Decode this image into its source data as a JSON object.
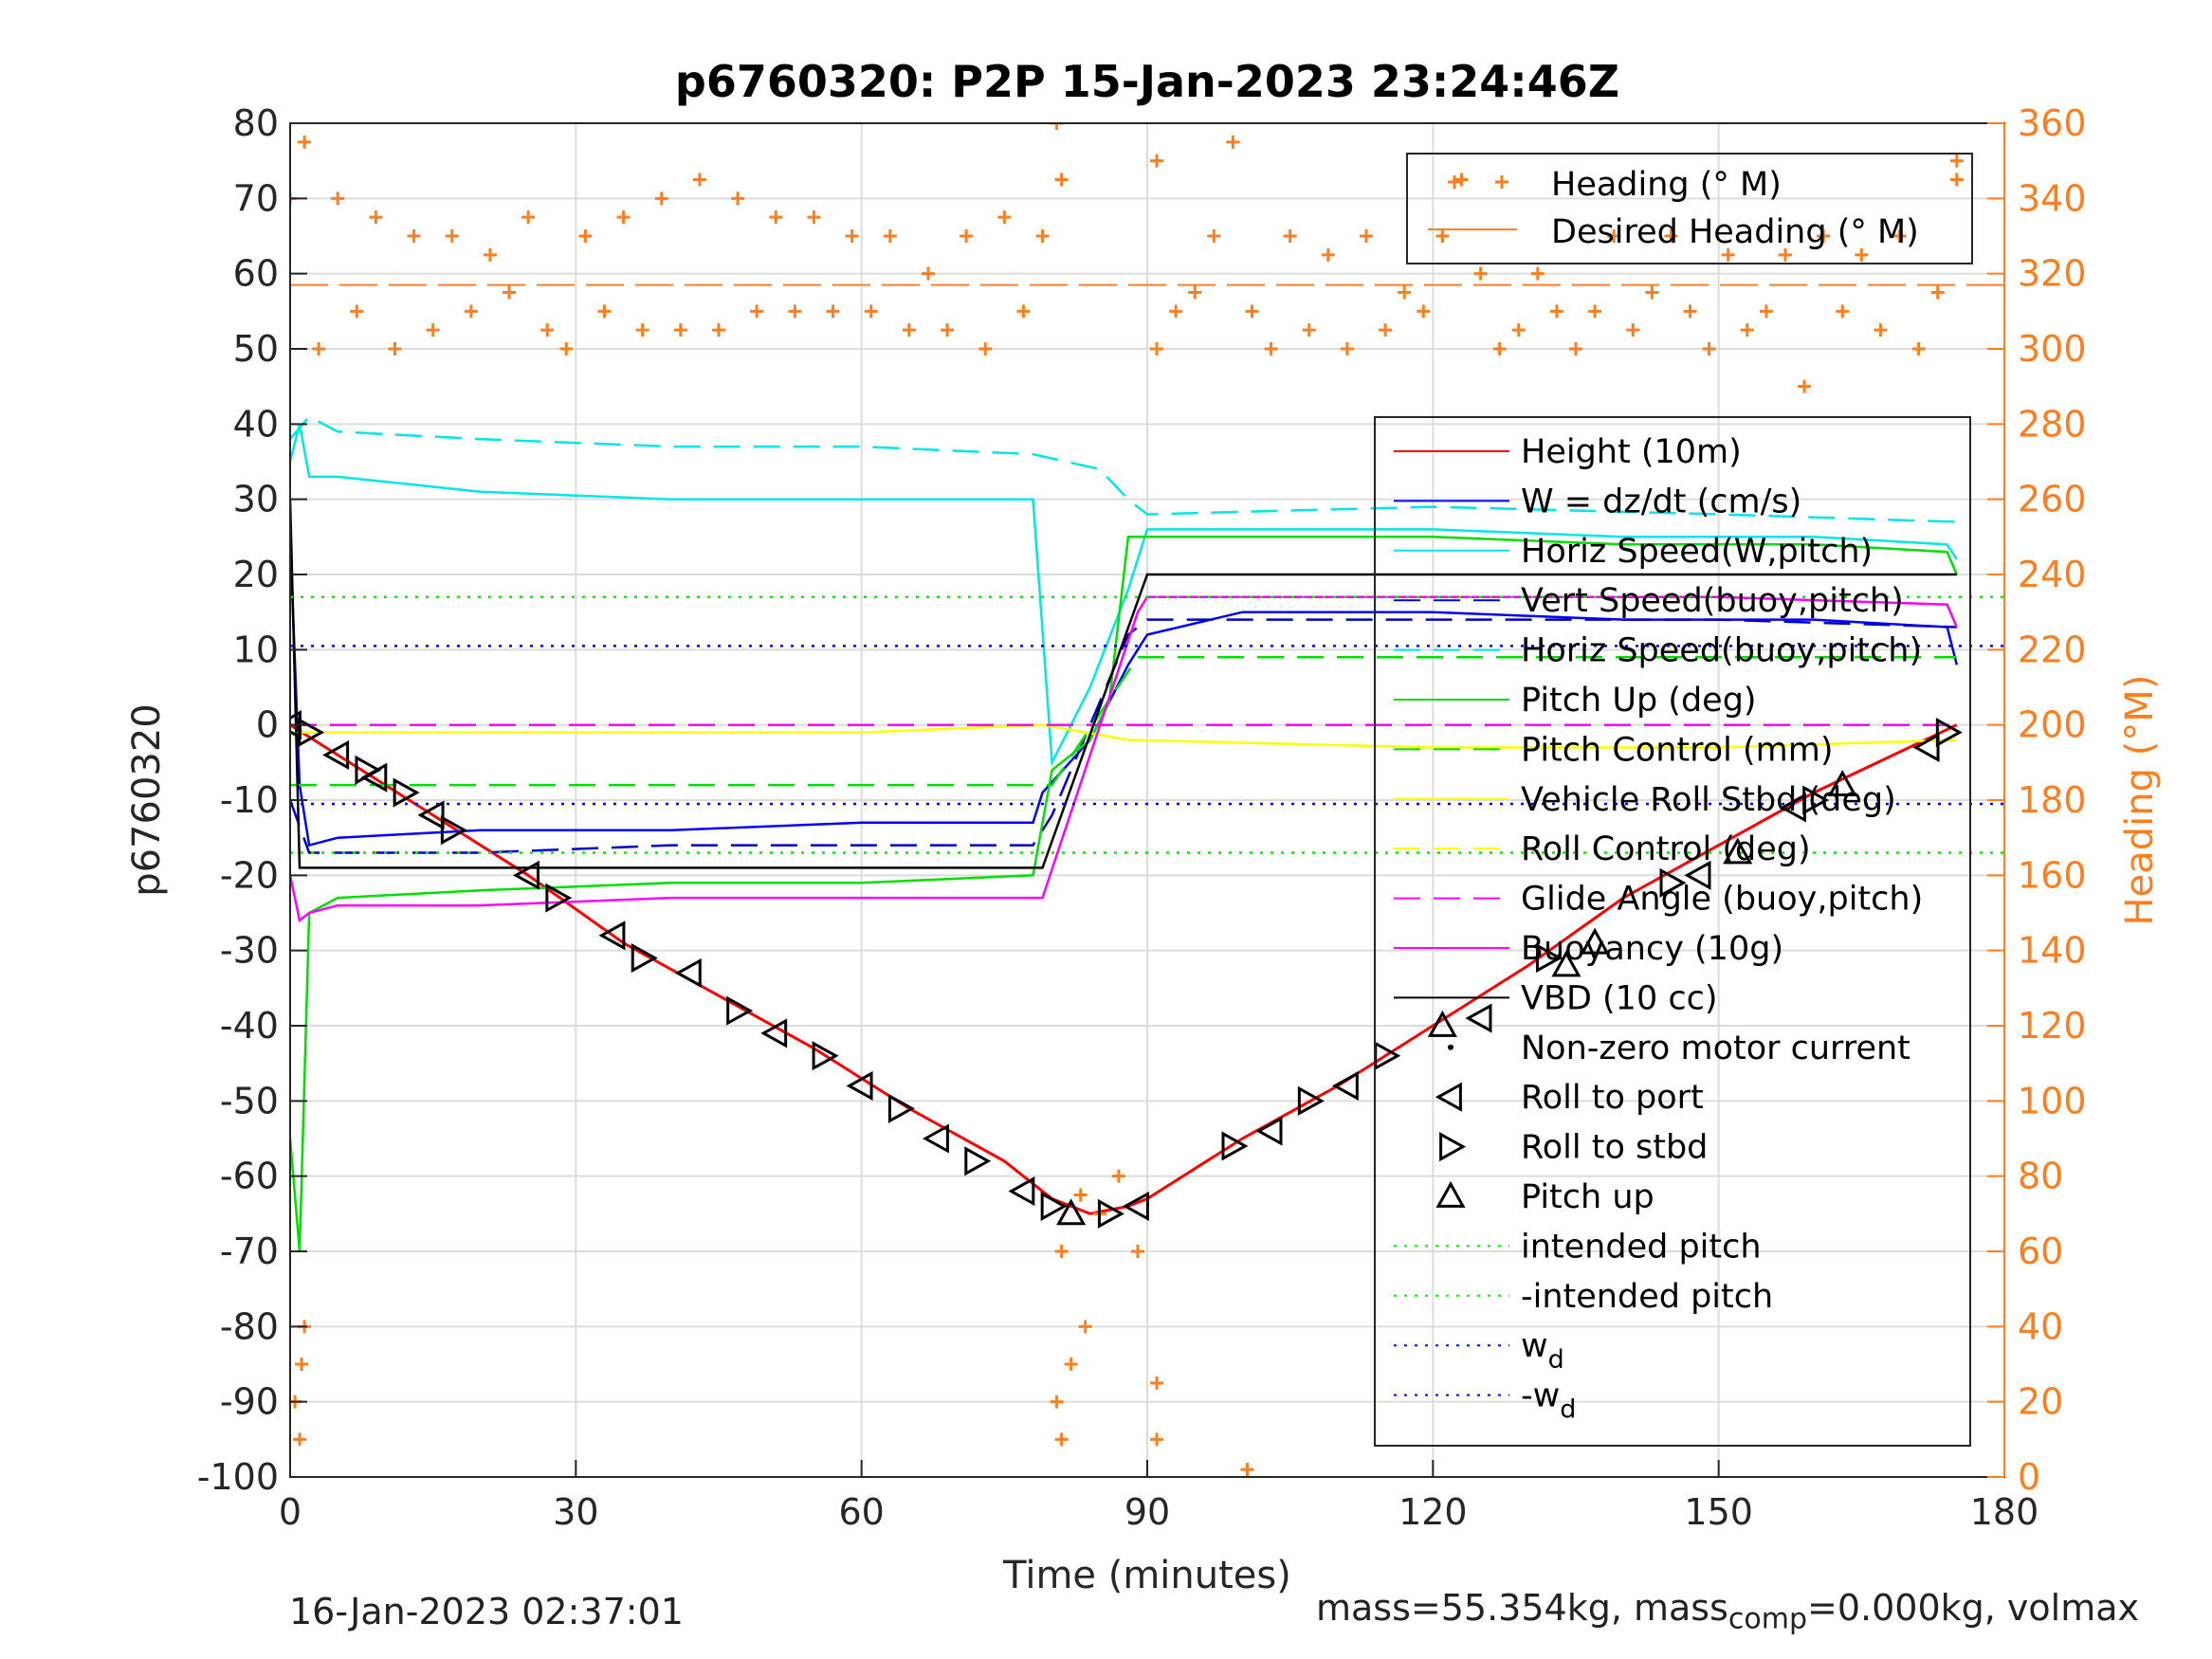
{
  "chart_data": {
    "type": "line",
    "title": "p6760320: P2P 15-Jan-2023 23:24:46Z",
    "xlabel": "Time (minutes)",
    "ylabel_left": "p6760320",
    "ylabel_right": "Heading (°M)",
    "xlim": [
      0,
      180
    ],
    "ylim_left": [
      -100,
      80
    ],
    "ylim_right": [
      0,
      360
    ],
    "x_ticks": [
      "0",
      "30",
      "60",
      "90",
      "120",
      "150",
      "180"
    ],
    "y_ticks_left": [
      "80",
      "70",
      "60",
      "50",
      "40",
      "30",
      "20",
      "10",
      "0",
      "-10",
      "-20",
      "-30",
      "-40",
      "-50",
      "-60",
      "-70",
      "-80",
      "-90",
      "-100"
    ],
    "y_ticks_right": [
      "360",
      "340",
      "320",
      "300",
      "280",
      "260",
      "240",
      "220",
      "200",
      "180",
      "160",
      "140",
      "120",
      "100",
      "80",
      "60",
      "40",
      "20",
      "0"
    ],
    "grid": true,
    "heading_legend": [
      {
        "label": "Heading (° M)",
        "color": "#ff7f20",
        "marker": "plus"
      },
      {
        "label": "Desired Heading (° M)",
        "color": "#ff7f20",
        "marker": "dash"
      }
    ],
    "legend": [
      {
        "label": "Height (10m)",
        "color": "#ff0000",
        "style": "solid"
      },
      {
        "label": "W = dz/dt (cm/s)",
        "color": "#0000ff",
        "style": "solid"
      },
      {
        "label": "Horiz Speed(W,pitch)",
        "color": "#00e5e5",
        "style": "solid"
      },
      {
        "label": "Vert Speed(buoy,pitch)",
        "color": "#0000cc",
        "style": "dashed"
      },
      {
        "label": "Horiz Speed(buoy,pitch)",
        "color": "#00e5e5",
        "style": "dashed"
      },
      {
        "label": "Pitch Up (deg)",
        "color": "#00dd00",
        "style": "solid"
      },
      {
        "label": "Pitch Control (mm)",
        "color": "#00dd00",
        "style": "dashed"
      },
      {
        "label": "Vehicle Roll Stbd (deg)",
        "color": "#ffff00",
        "style": "solid"
      },
      {
        "label": "Roll Control (deg)",
        "color": "#ffff00",
        "style": "dashed"
      },
      {
        "label": "Glide Angle (buoy,pitch)",
        "color": "#ff00ff",
        "style": "dashed"
      },
      {
        "label": "Buoyancy (10g)",
        "color": "#ff00ff",
        "style": "solid"
      },
      {
        "label": "VBD (10 cc)",
        "color": "#000000",
        "style": "solid"
      },
      {
        "label": "Non-zero motor current",
        "color": "#000000",
        "style": "dot"
      },
      {
        "label": "Roll to port",
        "color": "#000000",
        "style": "tri-left"
      },
      {
        "label": "Roll to stbd",
        "color": "#000000",
        "style": "tri-right"
      },
      {
        "label": "Pitch up",
        "color": "#000000",
        "style": "tri-up"
      },
      {
        "label": "intended pitch",
        "color": "#00ee00",
        "style": "dotted"
      },
      {
        "label": "-intended pitch",
        "color": "#00ee00",
        "style": "dotted"
      },
      {
        "label": "w",
        "sub": "d",
        "color": "#0000ff",
        "style": "dotted"
      },
      {
        "label": "-w",
        "sub": "d",
        "color": "#0000ff",
        "style": "dotted"
      }
    ],
    "series": [
      {
        "name": "Height (10m)",
        "color": "#ff0000",
        "x": [
          0,
          5,
          15,
          25,
          35,
          45,
          55,
          65,
          75,
          80,
          84,
          88,
          90,
          100,
          110,
          120,
          130,
          140,
          150,
          160,
          170,
          175
        ],
        "y": [
          0,
          -4,
          -12,
          -20,
          -29,
          -36,
          -43,
          -51,
          -58,
          -63,
          -65,
          -64,
          -63,
          -55,
          -48,
          -40,
          -32,
          -23,
          -16,
          -9,
          -3,
          0
        ]
      },
      {
        "name": "W = dz/dt (cm/s)",
        "color": "#0000ff",
        "x": [
          0,
          1,
          2,
          5,
          20,
          40,
          60,
          78,
          79,
          84,
          88,
          90,
          100,
          120,
          140,
          160,
          174,
          175
        ],
        "y": [
          25,
          -8,
          -16,
          -15,
          -14,
          -14,
          -13,
          -13,
          -9,
          -2,
          8,
          12,
          15,
          15,
          14,
          14,
          13,
          8
        ]
      },
      {
        "name": "Horiz Speed(W,pitch)",
        "color": "#00e5e5",
        "x": [
          0,
          1,
          2,
          5,
          20,
          40,
          60,
          78,
          80,
          84,
          88,
          90,
          100,
          120,
          140,
          160,
          174,
          175
        ],
        "y": [
          35,
          40,
          33,
          33,
          31,
          30,
          30,
          30,
          -5,
          5,
          18,
          26,
          26,
          26,
          25,
          25,
          24,
          22
        ]
      },
      {
        "name": "Vert Speed(buoy,pitch)",
        "color": "#0000cc",
        "x": [
          0,
          2,
          5,
          20,
          40,
          60,
          78,
          80,
          88,
          90,
          120,
          150,
          175
        ],
        "y": [
          -10,
          -17,
          -17,
          -17,
          -16,
          -16,
          -16,
          -12,
          12,
          14,
          14,
          14,
          13
        ]
      },
      {
        "name": "Horiz Speed(buoy,pitch)",
        "color": "#00e5e5",
        "x": [
          0,
          2,
          5,
          20,
          40,
          60,
          78,
          85,
          88,
          90,
          120,
          150,
          175
        ],
        "y": [
          38,
          41,
          39,
          38,
          37,
          37,
          36,
          34,
          30,
          28,
          29,
          28,
          27
        ]
      },
      {
        "name": "Pitch Up (deg)",
        "color": "#00dd00",
        "x": [
          0,
          1,
          2,
          5,
          20,
          40,
          60,
          78,
          80,
          84,
          86,
          88,
          90,
          100,
          120,
          140,
          160,
          174,
          175
        ],
        "y": [
          -55,
          -70,
          -25,
          -23,
          -22,
          -21,
          -21,
          -20,
          -6,
          -2,
          3,
          25,
          25,
          25,
          25,
          24,
          24,
          23,
          20
        ]
      },
      {
        "name": "Pitch Control (mm)",
        "color": "#00dd00",
        "x": [
          0,
          80,
          89,
          175
        ],
        "y": [
          -8,
          -8,
          9,
          9
        ]
      },
      {
        "name": "Vehicle Roll Stbd (deg)",
        "color": "#ffff00",
        "x": [
          0,
          30,
          60,
          79,
          88,
          120,
          150,
          175
        ],
        "y": [
          -1,
          -1,
          -1,
          0,
          -2,
          -3,
          -3,
          -2
        ]
      },
      {
        "name": "Glide Angle (buoy,pitch)",
        "color": "#ff00ff",
        "x": [
          0,
          79,
          88,
          175
        ],
        "y": [
          0,
          0,
          0,
          0
        ]
      },
      {
        "name": "Buoyancy (10g)",
        "color": "#ff00ff",
        "x": [
          0,
          1,
          2,
          5,
          20,
          40,
          60,
          79,
          89,
          90,
          120,
          150,
          174,
          175
        ],
        "y": [
          -20,
          -26,
          -25,
          -24,
          -24,
          -23,
          -23,
          -23,
          15,
          17,
          17,
          17,
          16,
          13
        ]
      },
      {
        "name": "VBD (10 cc)",
        "color": "#000000",
        "x": [
          0,
          1,
          2,
          79,
          90,
          175
        ],
        "y": [
          30,
          -19,
          -19,
          -19,
          20,
          20
        ]
      },
      {
        "name": "intended pitch",
        "color": "#00ee00",
        "x": [
          0,
          180
        ],
        "y": [
          17,
          17
        ]
      },
      {
        "name": "-intended pitch",
        "color": "#00ee00",
        "x": [
          0,
          180
        ],
        "y": [
          -17,
          -17
        ]
      },
      {
        "name": "w_d",
        "color": "#0000ff",
        "x": [
          0,
          180
        ],
        "y": [
          10.5,
          10.5
        ]
      },
      {
        "name": "-w_d",
        "color": "#0000ff",
        "x": [
          0,
          180
        ],
        "y": [
          -10.5,
          -10.5
        ]
      }
    ],
    "desired_heading": {
      "x": [
        0,
        180
      ],
      "y": [
        317,
        317
      ]
    },
    "heading": {
      "x": [
        0,
        1.5,
        3,
        5,
        7,
        9,
        11,
        13,
        15,
        17,
        19,
        21,
        23,
        25,
        27,
        29,
        31,
        33,
        35,
        37,
        39,
        41,
        43,
        45,
        47,
        49,
        51,
        53,
        55,
        57,
        59,
        61,
        63,
        65,
        67,
        69,
        71,
        73,
        75,
        77,
        79,
        81,
        83,
        85,
        87,
        89,
        91,
        93,
        95,
        97,
        99,
        101,
        103,
        105,
        107,
        109,
        111,
        113,
        115,
        117,
        119,
        121,
        123,
        125,
        127,
        129,
        131,
        133,
        135,
        137,
        139,
        141,
        143,
        145,
        147,
        149,
        151,
        153,
        155,
        157,
        159,
        161,
        163,
        165,
        167,
        169,
        171,
        173,
        175
      ],
      "y": [
        340,
        355,
        300,
        340,
        310,
        335,
        300,
        330,
        305,
        330,
        310,
        325,
        315,
        335,
        305,
        300,
        330,
        310,
        335,
        305,
        340,
        305,
        345,
        305,
        340,
        310,
        335,
        310,
        335,
        310,
        330,
        310,
        330,
        305,
        320,
        305,
        330,
        300,
        335,
        310,
        330,
        60,
        75,
        70,
        80,
        60,
        300,
        310,
        315,
        330,
        355,
        310,
        300,
        330,
        305,
        325,
        300,
        330,
        305,
        315,
        310,
        330,
        345,
        320,
        300,
        305,
        320,
        310,
        300,
        310,
        330,
        305,
        315,
        330,
        310,
        300,
        325,
        305,
        310,
        325,
        290,
        330,
        310,
        325,
        305,
        330,
        300,
        315,
        345
      ]
    },
    "heading_outliers": [
      {
        "x": 0.5,
        "y": 20
      },
      {
        "x": 1,
        "y": 10
      },
      {
        "x": 1.2,
        "y": 30
      },
      {
        "x": 1.5,
        "y": 40
      },
      {
        "x": 80.5,
        "y": 360
      },
      {
        "x": 81,
        "y": 345
      },
      {
        "x": 80.5,
        "y": 20
      },
      {
        "x": 81,
        "y": 10
      },
      {
        "x": 82,
        "y": 30
      },
      {
        "x": 83.5,
        "y": 40
      },
      {
        "x": 91,
        "y": 10
      },
      {
        "x": 91,
        "y": 25
      },
      {
        "x": 91,
        "y": 350
      },
      {
        "x": 100.5,
        "y": 2
      },
      {
        "x": 175,
        "y": 350
      }
    ],
    "markers": {
      "roll_to_port": {
        "x": [
          0,
          5,
          9,
          15,
          25,
          34,
          42,
          51,
          60,
          68,
          77,
          89,
          103,
          111,
          125,
          148,
          158,
          172
        ],
        "y": [
          0,
          -4,
          -7,
          -12,
          -20,
          -28,
          -33,
          -41,
          -48,
          -55,
          -62,
          -64,
          -54,
          -48,
          -39,
          -20,
          -11,
          -3
        ]
      },
      "roll_to_stbd": {
        "x": [
          2,
          8,
          12,
          17,
          28,
          37,
          47,
          56,
          64,
          72,
          80,
          86,
          99,
          107,
          115,
          132,
          145,
          160,
          174
        ],
        "y": [
          -1,
          -6,
          -9,
          -14,
          -23,
          -31,
          -38,
          -44,
          -51,
          -58,
          -64,
          -65,
          -56,
          -50,
          -44,
          -31,
          -21,
          -10,
          -1
        ]
      },
      "pitch_up": {
        "x": [
          82,
          121,
          134,
          137,
          152,
          163
        ],
        "y": [
          -65,
          -40,
          -32,
          -29,
          -17,
          -8
        ]
      }
    }
  },
  "footer": {
    "left": "16-Jan-2023 02:37:01",
    "right_pre": "mass=55.354kg, mass",
    "right_sub": "comp",
    "right_post": "=0.000kg, volmax"
  }
}
